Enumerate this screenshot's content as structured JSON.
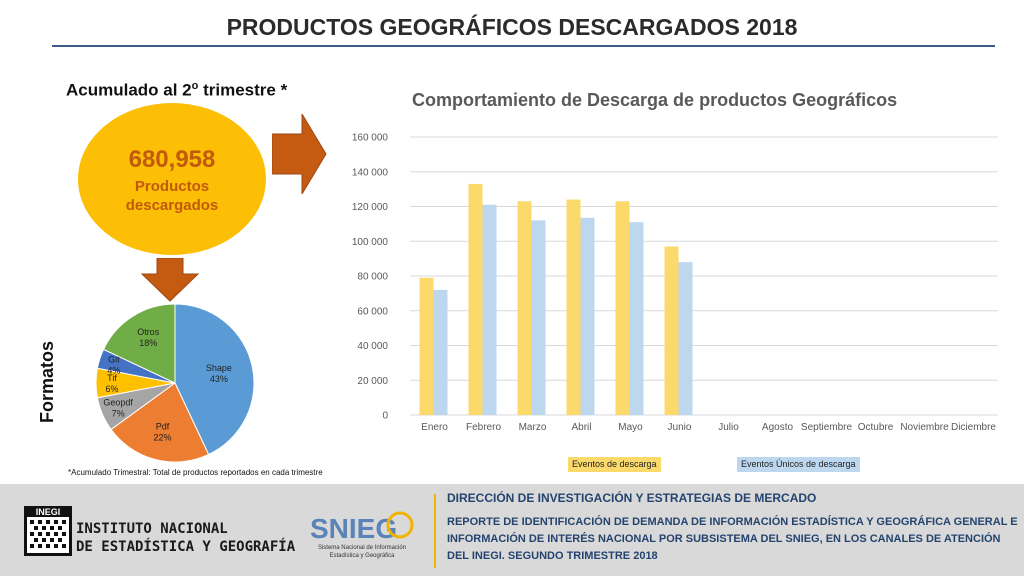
{
  "header": {
    "title": "PRODUCTOS GEOGRÁFICOS DESCARGADOS 2018"
  },
  "summary": {
    "heading": "Acumulado al 2",
    "heading_sup": "o",
    "heading_suffix": " trimestre *",
    "total": "680,958",
    "total_label_1": "Productos",
    "total_label_2": "descargados",
    "formats_label": "Formatos",
    "footnote": "*Acumulado Trimestral: Total de productos reportados en cada trimestre"
  },
  "colors": {
    "series1": "#fcd96b",
    "series2": "#bdd7ee",
    "accent": "#c55a11",
    "ellipse": "#fcbf06",
    "navy": "#24446f"
  },
  "chart_data": [
    {
      "type": "bar",
      "title": "Comportamiento de Descarga de productos Geográficos",
      "categories": [
        "Enero",
        "Febrero",
        "Marzo",
        "Abril",
        "Mayo",
        "Junio",
        "Julio",
        "Agosto",
        "Septiembre",
        "Octubre",
        "Noviembre",
        "Diciembre"
      ],
      "series": [
        {
          "name": "Eventos de descarga",
          "values": [
            79000,
            133000,
            123000,
            124000,
            123000,
            97000,
            null,
            null,
            null,
            null,
            null,
            null
          ]
        },
        {
          "name": "Eventos Únicos de descarga",
          "values": [
            72000,
            121000,
            112000,
            113500,
            111000,
            88000,
            null,
            null,
            null,
            null,
            null,
            null
          ]
        }
      ],
      "ylim": [
        0,
        160000
      ],
      "yticks": [
        0,
        20000,
        40000,
        60000,
        80000,
        100000,
        120000,
        140000,
        160000
      ],
      "ytick_labels": [
        "0",
        "20 000",
        "40 000",
        "60 000",
        "80 000",
        "100 000",
        "120 000",
        "140 000",
        "160 000"
      ],
      "grid": true,
      "legend_position": "bottom"
    },
    {
      "type": "pie",
      "slices": [
        {
          "label": "Shape",
          "pct_label": "43%",
          "value": 43,
          "color": "#5b9bd5"
        },
        {
          "label": "Pdf",
          "pct_label": "22%",
          "value": 22,
          "color": "#ed7d31"
        },
        {
          "label": "Geopdf",
          "pct_label": "7%",
          "value": 7,
          "color": "#a5a5a5"
        },
        {
          "label": "Tif",
          "pct_label": "6%",
          "value": 6,
          "color": "#ffc000"
        },
        {
          "label": "Gif",
          "pct_label": "4%",
          "value": 4,
          "color": "#4472c4"
        },
        {
          "label": "Otros",
          "pct_label": "18%",
          "value": 18,
          "color": "#70ad47"
        }
      ]
    }
  ],
  "footer": {
    "org_line_1": "INSTITUTO NACIONAL",
    "org_line_2": "DE ESTADÍSTICA Y GEOGRAFÍA",
    "inegi_logo_text": "INEGI",
    "snieg_logo_text": "SNIEG",
    "snieg_caption_1": "Sistema Nacional de Información",
    "snieg_caption_2": "Estadística y Geográfica",
    "direction": "DIRECCIÓN DE INVESTIGACIÓN Y ESTRATEGIAS DE MERCADO",
    "report": "REPORTE DE IDENTIFICACIÓN DE DEMANDA DE INFORMACIÓN ESTADÍSTICA Y GEOGRÁFICA GENERAL E INFORMACIÓN DE INTERÉS NACIONAL POR SUBSISTEMA DEL SNIEG, EN LOS CANALES DE ATENCIÓN DEL INEGI. SEGUNDO TRIMESTRE 2018"
  }
}
